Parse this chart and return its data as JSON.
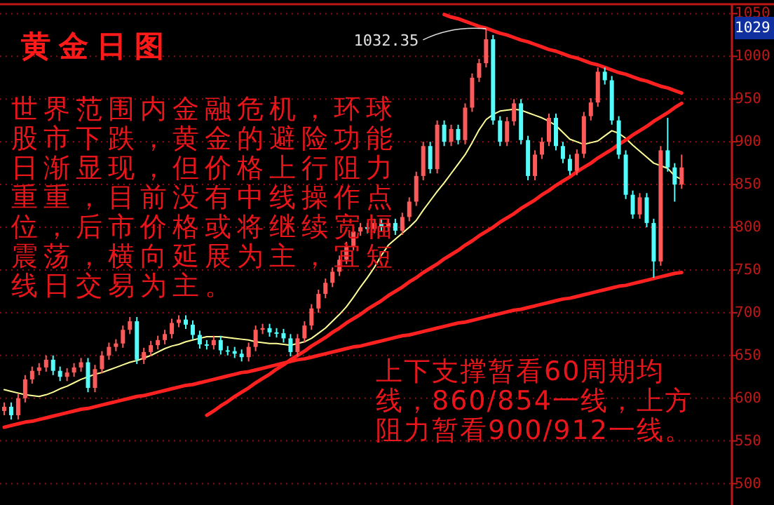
{
  "chart_data": {
    "type": "candlestick",
    "title": "黄金日图",
    "annotations": [
      "世界范围内金融危机，环球股市下跌，黄金的避险功能日渐显现，但价格上行阻力重重，目前没有中线操作点位，后市价格或将继续宽幅震荡，横向延展为主，宜短线日交易为主。",
      "上下支撑暂看60周期均线，860/854一线，上方阻力暂看900/912一线。",
      "1029",
      "1032.35"
    ],
    "categories": [
      null,
      null,
      null,
      null,
      null,
      null,
      null,
      null,
      null,
      null,
      null,
      null,
      null,
      null,
      null,
      null,
      null,
      null,
      null,
      null,
      null,
      null,
      null,
      null,
      null,
      null,
      null,
      null,
      null,
      null,
      null,
      null,
      null,
      null,
      null,
      null,
      null,
      null,
      null,
      null,
      null,
      null,
      null,
      null,
      null,
      null,
      null,
      null,
      null,
      null,
      null,
      null,
      null,
      null,
      null,
      null,
      null,
      null,
      null,
      null,
      null,
      null,
      null,
      null,
      null,
      null,
      null,
      null,
      null,
      null,
      null,
      null,
      null,
      null,
      null,
      null,
      null,
      null,
      null,
      null,
      null,
      null,
      null,
      null,
      null,
      null,
      null,
      null,
      null,
      null,
      null,
      null,
      null,
      null,
      null,
      null,
      null,
      null
    ],
    "ohlc": [
      [
        585,
        595,
        580,
        590
      ],
      [
        590,
        595,
        575,
        580
      ],
      [
        580,
        605,
        575,
        600
      ],
      [
        600,
        627,
        595,
        622
      ],
      [
        622,
        637,
        617,
        632
      ],
      [
        632,
        641,
        627,
        636
      ],
      [
        636,
        650,
        631,
        645
      ],
      [
        645,
        650,
        627,
        632
      ],
      [
        632,
        637,
        620,
        625
      ],
      [
        625,
        635,
        620,
        630
      ],
      [
        630,
        641,
        625,
        636
      ],
      [
        636,
        647,
        631,
        642
      ],
      [
        642,
        647,
        607,
        612
      ],
      [
        612,
        639,
        607,
        634
      ],
      [
        634,
        655,
        629,
        650
      ],
      [
        650,
        665,
        645,
        660
      ],
      [
        660,
        669,
        655,
        664
      ],
      [
        664,
        685,
        659,
        680
      ],
      [
        680,
        695,
        675,
        690
      ],
      [
        690,
        695,
        640,
        645
      ],
      [
        645,
        659,
        640,
        654
      ],
      [
        654,
        667,
        649,
        662
      ],
      [
        662,
        673,
        657,
        668
      ],
      [
        668,
        680,
        663,
        675
      ],
      [
        675,
        693,
        670,
        688
      ],
      [
        688,
        697,
        683,
        692
      ],
      [
        692,
        697,
        681,
        686
      ],
      [
        686,
        691,
        669,
        674
      ],
      [
        674,
        679,
        658,
        663
      ],
      [
        663,
        668,
        657,
        662
      ],
      [
        662,
        673,
        657,
        668
      ],
      [
        668,
        673,
        651,
        656
      ],
      [
        656,
        661,
        650,
        655
      ],
      [
        655,
        660,
        647,
        652
      ],
      [
        652,
        657,
        643,
        648
      ],
      [
        648,
        665,
        643,
        660
      ],
      [
        660,
        685,
        655,
        680
      ],
      [
        680,
        687,
        675,
        682
      ],
      [
        682,
        687,
        672,
        677
      ],
      [
        677,
        682,
        671,
        676
      ],
      [
        676,
        681,
        665,
        670
      ],
      [
        670,
        675,
        649,
        654
      ],
      [
        654,
        675,
        649,
        670
      ],
      [
        670,
        690,
        665,
        685
      ],
      [
        685,
        710,
        680,
        705
      ],
      [
        705,
        727,
        700,
        722
      ],
      [
        722,
        740,
        717,
        735
      ],
      [
        735,
        753,
        730,
        748
      ],
      [
        748,
        767,
        743,
        762
      ],
      [
        762,
        783,
        757,
        778
      ],
      [
        778,
        800,
        773,
        795
      ],
      [
        795,
        805,
        790,
        800
      ],
      [
        800,
        805,
        793,
        798
      ],
      [
        798,
        810,
        793,
        805
      ],
      [
        805,
        810,
        795,
        800
      ],
      [
        800,
        810,
        795,
        805
      ],
      [
        805,
        810,
        791,
        796
      ],
      [
        796,
        817,
        791,
        812
      ],
      [
        812,
        835,
        807,
        830
      ],
      [
        830,
        865,
        825,
        860
      ],
      [
        860,
        900,
        855,
        895
      ],
      [
        895,
        900,
        863,
        868
      ],
      [
        868,
        925,
        863,
        920
      ],
      [
        920,
        925,
        895,
        900
      ],
      [
        900,
        920,
        895,
        915
      ],
      [
        915,
        920,
        897,
        902
      ],
      [
        902,
        945,
        897,
        940
      ],
      [
        940,
        980,
        935,
        975
      ],
      [
        975,
        997,
        970,
        992
      ],
      [
        992,
        1032.35,
        987,
        1020
      ],
      [
        1020,
        1025,
        920,
        925
      ],
      [
        925,
        930,
        895,
        900
      ],
      [
        900,
        929,
        895,
        924
      ],
      [
        924,
        950,
        919,
        945
      ],
      [
        945,
        950,
        897,
        902
      ],
      [
        902,
        907,
        855,
        860
      ],
      [
        860,
        890,
        855,
        885
      ],
      [
        885,
        905,
        880,
        900
      ],
      [
        900,
        933,
        895,
        928
      ],
      [
        928,
        933,
        890,
        895
      ],
      [
        895,
        900,
        875,
        880
      ],
      [
        880,
        885,
        861,
        866
      ],
      [
        866,
        891,
        861,
        886
      ],
      [
        886,
        935,
        881,
        930
      ],
      [
        930,
        951,
        925,
        946
      ],
      [
        946,
        987,
        941,
        982
      ],
      [
        982,
        987,
        967,
        972
      ],
      [
        972,
        977,
        920,
        925
      ],
      [
        925,
        930,
        880,
        885
      ],
      [
        885,
        890,
        833,
        838
      ],
      [
        838,
        843,
        810,
        815
      ],
      [
        815,
        840,
        810,
        835
      ],
      [
        835,
        840,
        800,
        805
      ],
      [
        805,
        810,
        741,
        760
      ],
      [
        760,
        895,
        755,
        890
      ],
      [
        890,
        928,
        865,
        870
      ],
      [
        870,
        875,
        830,
        850
      ],
      [
        850,
        885,
        845,
        870
      ]
    ],
    "series": [
      {
        "type": "line",
        "color": "#ffff99",
        "values": [
          610,
          608,
          606,
          604,
          603,
          602,
          604,
          607,
          611,
          614,
          618,
          622,
          625,
          628,
          630,
          633,
          636,
          639,
          642,
          644,
          647,
          650,
          654,
          658,
          661,
          663,
          666,
          668,
          670,
          672,
          672,
          672,
          671,
          670,
          669,
          668,
          666,
          665,
          664,
          664,
          663,
          662,
          664,
          666,
          670,
          676,
          682,
          690,
          698,
          707,
          718,
          730,
          741,
          753,
          767,
          779,
          786,
          793,
          800,
          808,
          820,
          831,
          842,
          852,
          863,
          874,
          885,
          899,
          914,
          926,
          932,
          936,
          937,
          938,
          937,
          934,
          931,
          928,
          924,
          919,
          911,
          903,
          900,
          897,
          899,
          901,
          907,
          913,
          910,
          904,
          896,
          889,
          882,
          875,
          872,
          869,
          860,
          856
        ]
      },
      {
        "type": "line",
        "color": "#ff2020",
        "values": [
          null,
          null,
          null,
          null,
          null,
          null,
          null,
          null,
          null,
          null,
          null,
          null,
          null,
          null,
          null,
          null,
          null,
          null,
          null,
          null,
          null,
          null,
          null,
          null,
          null,
          null,
          null,
          null,
          null,
          null,
          null,
          null,
          null,
          null,
          null,
          null,
          null,
          null,
          null,
          null,
          null,
          null,
          null,
          null,
          null,
          null,
          null,
          null,
          null,
          null,
          null,
          null,
          null,
          null,
          null,
          null,
          null,
          null,
          null,
          null,
          null,
          null,
          null,
          1049,
          1046,
          1044,
          1041,
          1038,
          1035,
          1033,
          1030,
          1027,
          1025,
          1022,
          1019,
          1017,
          1014,
          1011,
          1008,
          1006,
          1003,
          1000,
          998,
          995,
          992,
          990,
          987,
          984,
          981,
          979,
          976,
          973,
          971,
          968,
          965,
          963,
          960,
          957
        ]
      },
      {
        "type": "line",
        "color": "#ff2020",
        "values": [
          null,
          null,
          null,
          null,
          null,
          null,
          null,
          null,
          null,
          null,
          null,
          null,
          null,
          null,
          null,
          null,
          null,
          null,
          null,
          null,
          null,
          null,
          null,
          null,
          null,
          null,
          null,
          null,
          null,
          580,
          585,
          591,
          596,
          602,
          607,
          612,
          618,
          623,
          628,
          634,
          639,
          645,
          650,
          655,
          661,
          666,
          671,
          677,
          682,
          688,
          693,
          698,
          704,
          709,
          714,
          720,
          725,
          730,
          736,
          741,
          747,
          752,
          757,
          763,
          768,
          773,
          779,
          784,
          790,
          795,
          800,
          806,
          811,
          816,
          822,
          827,
          832,
          838,
          843,
          849,
          854,
          859,
          865,
          870,
          875,
          881,
          886,
          891,
          897,
          902,
          908,
          913,
          918,
          924,
          929,
          934,
          940,
          945
        ]
      },
      {
        "type": "line",
        "color": "#ff2020",
        "values": [
          566,
          568,
          570,
          572,
          573,
          575,
          577,
          579,
          581,
          583,
          585,
          587,
          588,
          590,
          592,
          594,
          596,
          598,
          600,
          602,
          603,
          605,
          607,
          609,
          611,
          613,
          615,
          616,
          618,
          620,
          622,
          624,
          626,
          628,
          630,
          631,
          633,
          635,
          637,
          639,
          641,
          643,
          645,
          646,
          648,
          650,
          652,
          654,
          656,
          658,
          660,
          661,
          663,
          665,
          667,
          669,
          671,
          673,
          674,
          676,
          678,
          680,
          682,
          684,
          686,
          688,
          689,
          691,
          693,
          695,
          697,
          699,
          701,
          703,
          704,
          706,
          708,
          710,
          712,
          714,
          716,
          717,
          719,
          721,
          723,
          725,
          727,
          729,
          731,
          732,
          734,
          736,
          738,
          740,
          742,
          744,
          746,
          747
        ]
      }
    ],
    "ylim": [
      475,
      1061
    ],
    "yticks": [
      500,
      550,
      600,
      650,
      700,
      750,
      800,
      850,
      900,
      950,
      1000,
      1050
    ],
    "grid": "y",
    "tick_labels": "y"
  }
}
